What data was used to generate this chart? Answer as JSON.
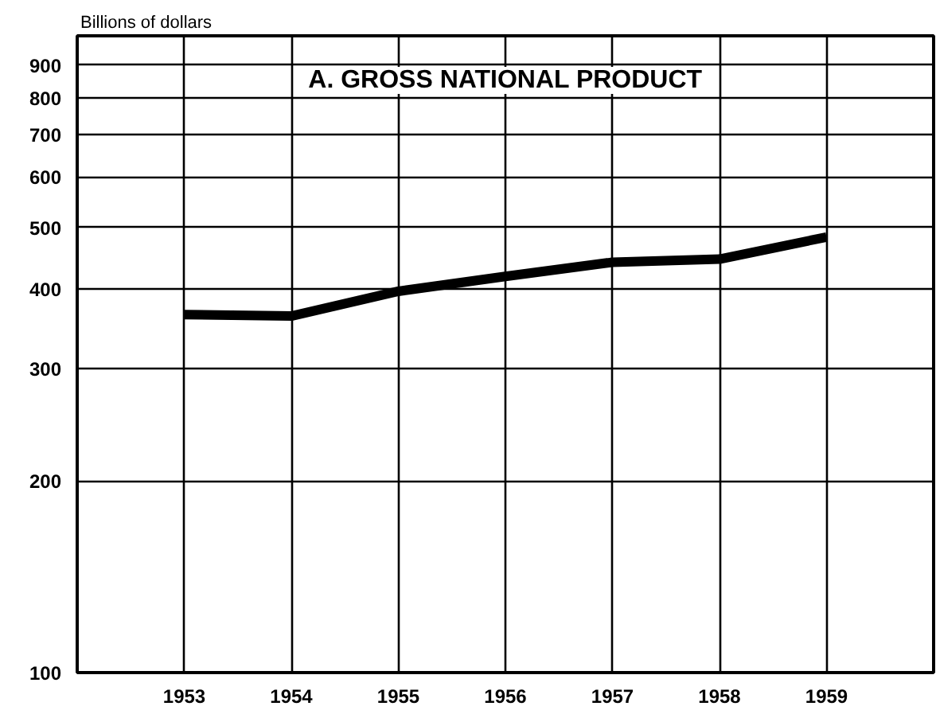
{
  "chart_data": {
    "type": "line",
    "title": "A. GROSS NATIONAL PRODUCT",
    "ylabel": "Billions of dollars",
    "x": [
      1953,
      1954,
      1955,
      1956,
      1957,
      1958,
      1959
    ],
    "series": [
      {
        "color": "#000000",
        "values": [
          365,
          363,
          397,
          419,
          441,
          446,
          483
        ]
      }
    ],
    "log": "y",
    "xlim": [
      1952,
      1960
    ],
    "ylim": [
      100,
      1000
    ],
    "xticks": [
      1953,
      1954,
      1955,
      1956,
      1957,
      1958,
      1959
    ],
    "yticks": [
      100,
      200,
      300,
      400,
      500,
      600,
      700,
      800,
      900
    ],
    "grid": true,
    "line_style": "solid"
  }
}
